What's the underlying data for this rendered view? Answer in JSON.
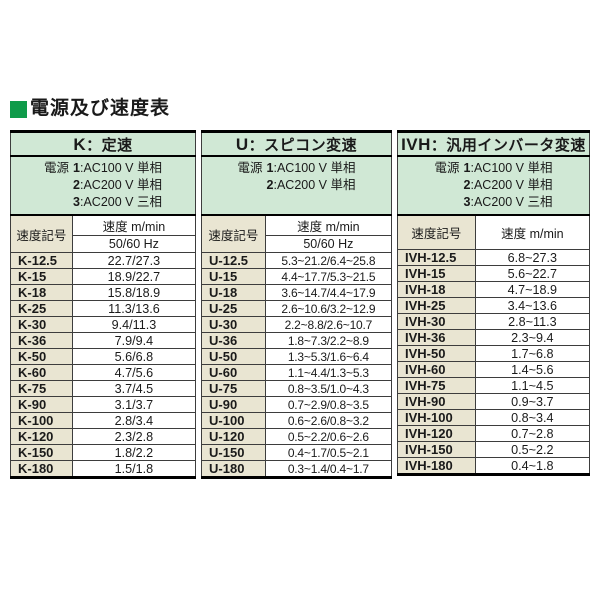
{
  "title": {
    "text": "電源及び速度表"
  },
  "colors": {
    "bullet_green": "#0f9b4a",
    "header_green": "#d0e8d5",
    "code_beige": "#e9e5d2",
    "border_thick": "#000000",
    "border_thin": "#3d3d3d",
    "text": "#1a1a1a"
  },
  "table": {
    "sections": [
      {
        "key": "K",
        "title_prefix": "K",
        "title_rest": "：定速",
        "power_label": "電源",
        "power_lines": [
          {
            "num": "1",
            "text": ":AC100 V 単相"
          },
          {
            "num": "2",
            "text": ":AC200 V 単相"
          },
          {
            "num": "3",
            "text": ":AC200 V 三相"
          }
        ],
        "col_code_header": "速度記号",
        "col_speed_header": "速度 m/min",
        "col_speed_subheader": "50/60 Hz",
        "rows": [
          {
            "code": "K-12.5",
            "speed": "22.7/27.3"
          },
          {
            "code": "K-15",
            "speed": "18.9/22.7"
          },
          {
            "code": "K-18",
            "speed": "15.8/18.9"
          },
          {
            "code": "K-25",
            "speed": "11.3/13.6"
          },
          {
            "code": "K-30",
            "speed": "9.4/11.3"
          },
          {
            "code": "K-36",
            "speed": "7.9/9.4"
          },
          {
            "code": "K-50",
            "speed": "5.6/6.8"
          },
          {
            "code": "K-60",
            "speed": "4.7/5.6"
          },
          {
            "code": "K-75",
            "speed": "3.7/4.5"
          },
          {
            "code": "K-90",
            "speed": "3.1/3.7"
          },
          {
            "code": "K-100",
            "speed": "2.8/3.4"
          },
          {
            "code": "K-120",
            "speed": "2.3/2.8"
          },
          {
            "code": "K-150",
            "speed": "1.8/2.2"
          },
          {
            "code": "K-180",
            "speed": "1.5/1.8"
          }
        ]
      },
      {
        "key": "U",
        "title_prefix": "U",
        "title_rest": "：スピコン変速",
        "power_label": "電源",
        "power_lines": [
          {
            "num": "1",
            "text": ":AC100 V 単相"
          },
          {
            "num": "2",
            "text": ":AC200 V 単相"
          }
        ],
        "col_code_header": "速度記号",
        "col_speed_header": "速度 m/min",
        "col_speed_subheader": "50/60 Hz",
        "rows": [
          {
            "code": "U-12.5",
            "speed": "5.3~21.2/6.4~25.8"
          },
          {
            "code": "U-15",
            "speed": "4.4~17.7/5.3~21.5"
          },
          {
            "code": "U-18",
            "speed": "3.6~14.7/4.4~17.9"
          },
          {
            "code": "U-25",
            "speed": "2.6~10.6/3.2~12.9"
          },
          {
            "code": "U-30",
            "speed": "2.2~8.8/2.6~10.7"
          },
          {
            "code": "U-36",
            "speed": "1.8~7.3/2.2~8.9"
          },
          {
            "code": "U-50",
            "speed": "1.3~5.3/1.6~6.4"
          },
          {
            "code": "U-60",
            "speed": "1.1~4.4/1.3~5.3"
          },
          {
            "code": "U-75",
            "speed": "0.8~3.5/1.0~4.3"
          },
          {
            "code": "U-90",
            "speed": "0.7~2.9/0.8~3.5"
          },
          {
            "code": "U-100",
            "speed": "0.6~2.6/0.8~3.2"
          },
          {
            "code": "U-120",
            "speed": "0.5~2.2/0.6~2.6"
          },
          {
            "code": "U-150",
            "speed": "0.4~1.7/0.5~2.1"
          },
          {
            "code": "U-180",
            "speed": "0.3~1.4/0.4~1.7"
          }
        ]
      },
      {
        "key": "IVH",
        "title_prefix": "IVH",
        "title_rest": "：汎用インバータ変速",
        "power_label": "電源",
        "power_lines": [
          {
            "num": "1",
            "text": ":AC100 V 単相"
          },
          {
            "num": "2",
            "text": ":AC200 V 単相"
          },
          {
            "num": "3",
            "text": ":AC200 V 三相"
          }
        ],
        "col_code_header": "速度記号",
        "col_speed_header": "速度 m/min",
        "col_speed_subheader": null,
        "rows": [
          {
            "code": "IVH-12.5",
            "speed": "6.8~27.3"
          },
          {
            "code": "IVH-15",
            "speed": "5.6~22.7"
          },
          {
            "code": "IVH-18",
            "speed": "4.7~18.9"
          },
          {
            "code": "IVH-25",
            "speed": "3.4~13.6"
          },
          {
            "code": "IVH-30",
            "speed": "2.8~11.3"
          },
          {
            "code": "IVH-36",
            "speed": "2.3~9.4"
          },
          {
            "code": "IVH-50",
            "speed": "1.7~6.8"
          },
          {
            "code": "IVH-60",
            "speed": "1.4~5.6"
          },
          {
            "code": "IVH-75",
            "speed": "1.1~4.5"
          },
          {
            "code": "IVH-90",
            "speed": "0.9~3.7"
          },
          {
            "code": "IVH-100",
            "speed": "0.8~3.4"
          },
          {
            "code": "IVH-120",
            "speed": "0.7~2.8"
          },
          {
            "code": "IVH-150",
            "speed": "0.5~2.2"
          },
          {
            "code": "IVH-180",
            "speed": "0.4~1.8"
          }
        ]
      }
    ]
  }
}
